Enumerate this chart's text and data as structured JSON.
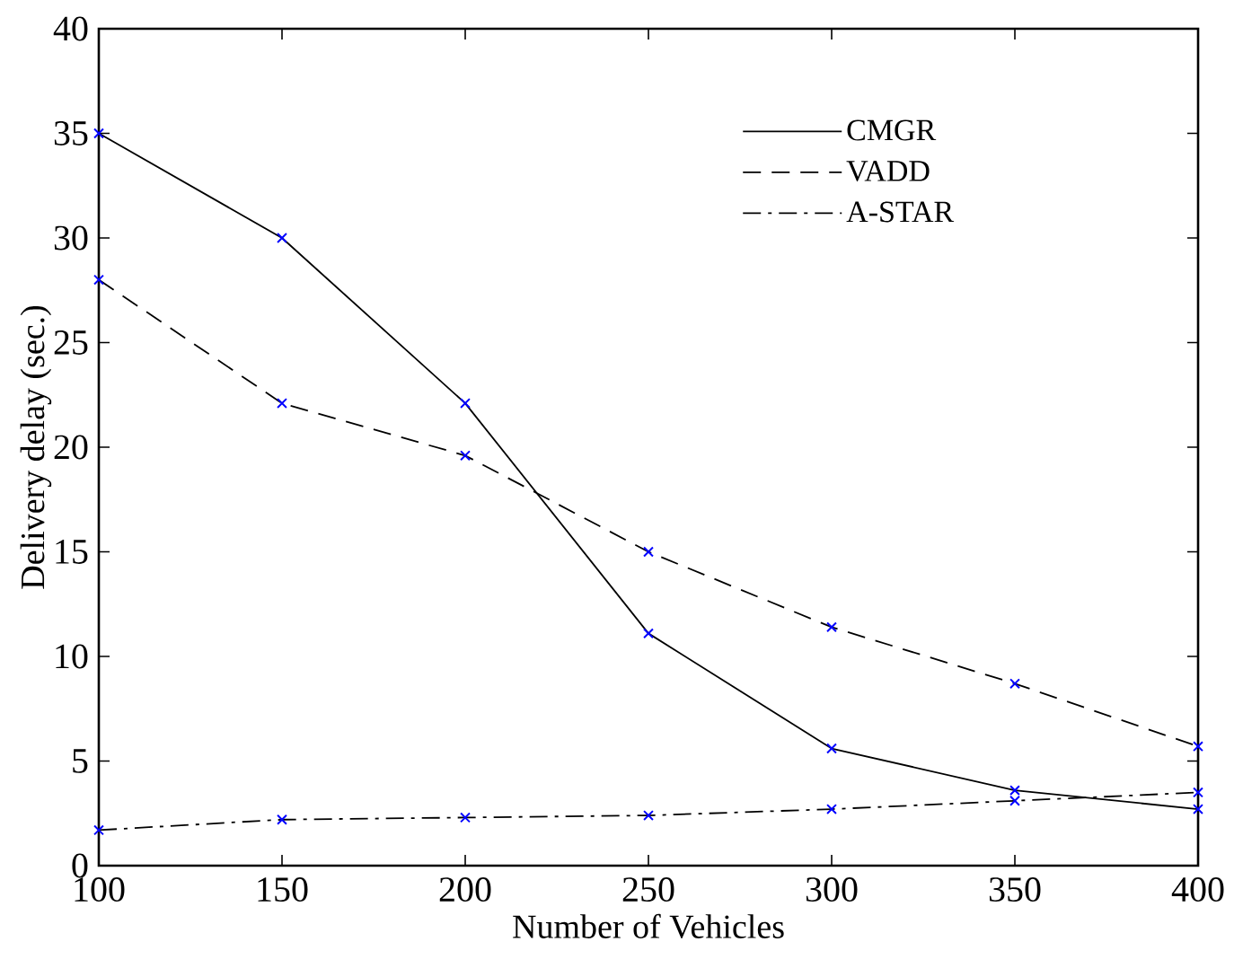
{
  "chart_data": {
    "type": "line",
    "xlabel": "Number of Vehicles",
    "ylabel": "Delivery delay (sec.)",
    "x": [
      100,
      150,
      200,
      250,
      300,
      350,
      400
    ],
    "series": [
      {
        "name": "CMGR",
        "color": "#000000",
        "line_style": "solid",
        "values": [
          35,
          30,
          22.1,
          11.1,
          5.6,
          3.6,
          2.7
        ]
      },
      {
        "name": "VADD",
        "color": "#000000",
        "line_style": "dashed",
        "values": [
          28,
          22.1,
          19.6,
          15,
          11.4,
          8.7,
          5.7
        ]
      },
      {
        "name": "A-STAR",
        "color": "#000000",
        "line_style": "dashdot",
        "values": [
          1.7,
          2.2,
          2.3,
          2.4,
          2.7,
          3.1,
          3.5
        ]
      }
    ],
    "xlim": [
      100,
      400
    ],
    "ylim": [
      0,
      40
    ],
    "xticks": [
      100,
      150,
      200,
      250,
      300,
      350,
      400
    ],
    "yticks": [
      0,
      5,
      10,
      15,
      20,
      25,
      30,
      35,
      40
    ],
    "marker": "cross",
    "legend": "top right",
    "grid": false
  }
}
